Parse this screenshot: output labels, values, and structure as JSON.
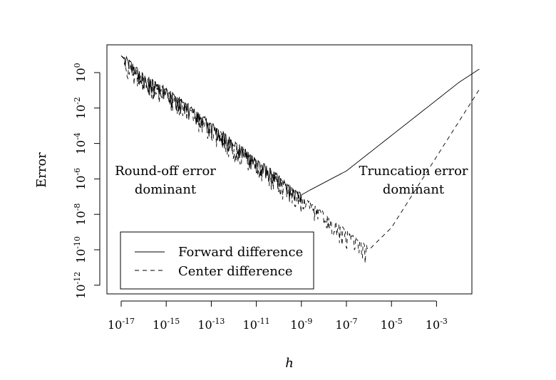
{
  "chart_data": {
    "type": "line",
    "title": "",
    "xlabel": "h",
    "ylabel": "Error",
    "x_scale": "log10",
    "y_scale": "log10",
    "xlim_exp": [
      -17.6,
      -1.1
    ],
    "ylim_exp": [
      -12.5,
      1.6
    ],
    "x_ticks": [
      {
        "base": "10",
        "exp": "-17",
        "value": -17
      },
      {
        "base": "10",
        "exp": "-15",
        "value": -15
      },
      {
        "base": "10",
        "exp": "-13",
        "value": -13
      },
      {
        "base": "10",
        "exp": "-11",
        "value": -11
      },
      {
        "base": "10",
        "exp": "-9",
        "value": -9
      },
      {
        "base": "10",
        "exp": "-7",
        "value": -7
      },
      {
        "base": "10",
        "exp": "-5",
        "value": -5
      },
      {
        "base": "10",
        "exp": "-3",
        "value": -3
      }
    ],
    "y_ticks": [
      {
        "base": "10",
        "exp": "0",
        "value": 0
      },
      {
        "base": "10",
        "exp": "-2",
        "value": -2
      },
      {
        "base": "10",
        "exp": "-4",
        "value": -4
      },
      {
        "base": "10",
        "exp": "-6",
        "value": -6
      },
      {
        "base": "10",
        "exp": "-8",
        "value": -8
      },
      {
        "base": "10",
        "exp": "-10",
        "value": -10
      },
      {
        "base": "10",
        "exp": "-12",
        "value": -12
      }
    ],
    "series": [
      {
        "name": "Forward difference",
        "style": "solid",
        "log10_h": [
          -17.0,
          -16.6,
          -16.0,
          -15.0,
          -14.0,
          -13.0,
          -12.0,
          -11.0,
          -10.0,
          -9.4,
          -9.0,
          -8.5,
          -7.0,
          -6.0,
          -5.0,
          -4.0,
          -3.0,
          -2.0,
          -1.1
        ],
        "log10_error": [
          0.95,
          0.55,
          -0.25,
          -0.95,
          -1.95,
          -2.95,
          -3.95,
          -4.95,
          -5.95,
          -6.7,
          -6.9,
          -6.55,
          -5.55,
          -4.55,
          -3.55,
          -2.55,
          -1.55,
          -0.55,
          0.2
        ],
        "noise": "fluctuating (round-off) for h below 1e-9"
      },
      {
        "name": "Center difference",
        "style": "dashed",
        "log10_h": [
          -17.0,
          -16.6,
          -16.0,
          -15.0,
          -14.0,
          -13.0,
          -12.0,
          -11.0,
          -10.0,
          -9.0,
          -8.0,
          -7.0,
          -6.0,
          -5.0,
          -4.0,
          -3.0,
          -2.0,
          -1.1
        ],
        "log10_error": [
          0.95,
          0.4,
          -0.35,
          -1.05,
          -2.05,
          -3.05,
          -4.05,
          -5.05,
          -6.05,
          -7.05,
          -8.05,
          -9.05,
          -10.0,
          -8.75,
          -6.75,
          -4.75,
          -2.75,
          -0.95
        ],
        "noise": "fluctuating (round-off) for h below 1e-6"
      }
    ],
    "annotations": [
      {
        "lines": [
          "Round-off error",
          "dominant"
        ],
        "position": "left-middle"
      },
      {
        "lines": [
          "Truncation error",
          "dominant"
        ],
        "position": "right-middle"
      }
    ],
    "legend": {
      "position": "bottom-left",
      "entries": [
        {
          "label": "Forward difference",
          "style": "solid"
        },
        {
          "label": "Center difference",
          "style": "dashed"
        }
      ]
    },
    "grid": false
  }
}
